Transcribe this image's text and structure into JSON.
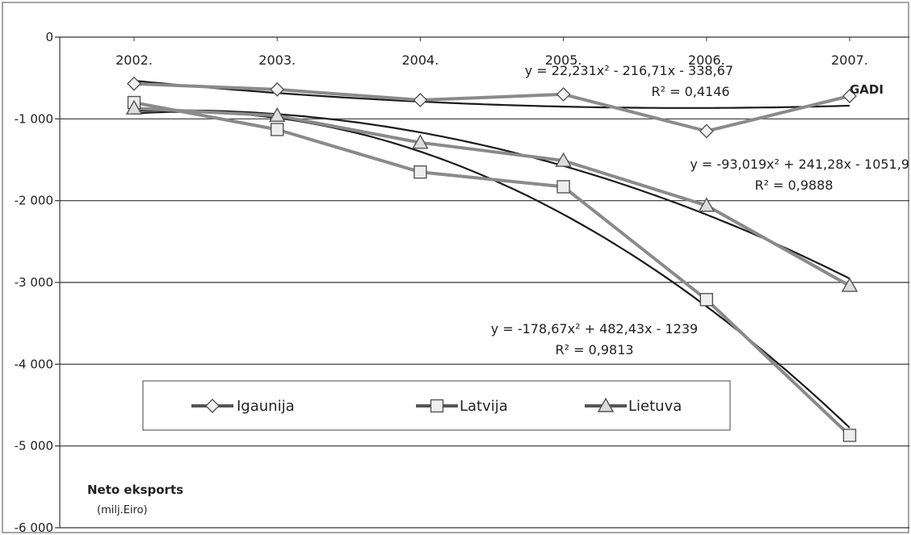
{
  "chart_data": {
    "type": "line",
    "categories": [
      "2002.",
      "2003.",
      "2004.",
      "2005.",
      "2006.",
      "2007."
    ],
    "x_axis_label": "GADI",
    "y_axis_title": "Neto eksports",
    "y_axis_unit": "(milj.Eiro)",
    "ylim": [
      -6000,
      0
    ],
    "y_ticks": [
      0,
      -1000,
      -2000,
      -3000,
      -4000,
      -5000,
      -6000
    ],
    "y_tick_labels": [
      "0",
      "-1 000",
      "-2 000",
      "-3 000",
      "-4 000",
      "-5 000",
      "-6 000"
    ],
    "grid": true,
    "legend_position": "bottom-left",
    "series": [
      {
        "name": "Igaunija",
        "marker": "diamond",
        "values": [
          -570,
          -640,
          -770,
          -700,
          -1150,
          -720
        ]
      },
      {
        "name": "Latvija",
        "marker": "square",
        "values": [
          -800,
          -1130,
          -1650,
          -1830,
          -3210,
          -4870
        ]
      },
      {
        "name": "Lietuva",
        "marker": "triangle",
        "values": [
          -870,
          -960,
          -1290,
          -1510,
          -2060,
          -3040
        ]
      }
    ],
    "trendlines": [
      {
        "series": "Igaunija",
        "a": 22.231,
        "b": -216.71,
        "c": -338.67,
        "equation": "y = 22,231x² - 216,71x - 338,67",
        "r2": "R² = 0,4146"
      },
      {
        "series": "Lietuva",
        "a": -93.019,
        "b": 241.28,
        "c": -1051.9,
        "equation": "y = -93,019x² + 241,28x - 1051,9",
        "r2": "R² = 0,9888"
      },
      {
        "series": "Latvija",
        "a": -178.67,
        "b": 482.43,
        "c": -1239,
        "equation": "y = -178,67x² + 482,43x - 1239",
        "r2": "R² = 0,9813"
      }
    ]
  }
}
